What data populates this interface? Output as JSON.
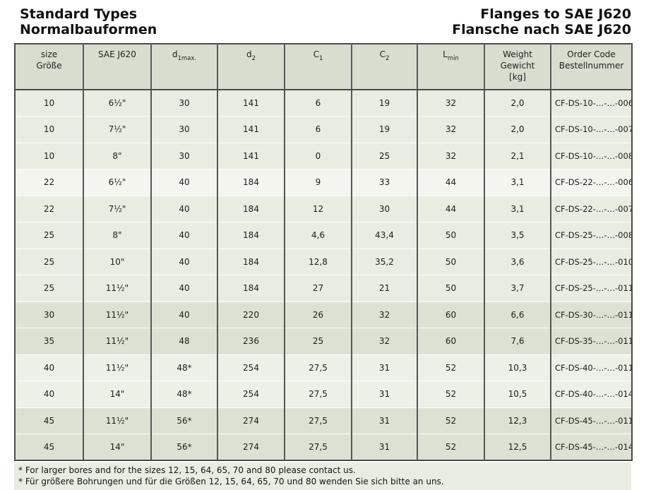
{
  "titles": {
    "left1": "Standard Types",
    "left2": "Normalbauformen",
    "right1": "Flanges to SAE J620",
    "right2": "Flansche nach SAE J620"
  },
  "table": {
    "columns": [
      {
        "id": "size",
        "lines": [
          "size",
          "Größe"
        ]
      },
      {
        "id": "sae",
        "lines": [
          "SAE J620"
        ]
      },
      {
        "id": "d1",
        "base": "d",
        "sub": "1max."
      },
      {
        "id": "d2",
        "base": "d",
        "sub": "2"
      },
      {
        "id": "c1",
        "base": "C",
        "sub": "1"
      },
      {
        "id": "c2",
        "base": "C",
        "sub": "2"
      },
      {
        "id": "l",
        "base": "L",
        "sub": "min"
      },
      {
        "id": "wt",
        "lines": [
          "Weight",
          "Gewicht",
          "[kg]"
        ]
      },
      {
        "id": "code",
        "lines": [
          "Order Code",
          "Bestellnummer"
        ]
      }
    ],
    "rows": [
      {
        "size": "10",
        "sae": "6½\"",
        "d1": "30",
        "d2": "141",
        "c1": "6",
        "c2": "19",
        "l": "32",
        "wt": "2,0",
        "code": "CF-DS-10-…-…-006",
        "band": "a"
      },
      {
        "size": "10",
        "sae": "7½\"",
        "d1": "30",
        "d2": "141",
        "c1": "6",
        "c2": "19",
        "l": "32",
        "wt": "2,0",
        "code": "CF-DS-10-…-…-007",
        "band": "a"
      },
      {
        "size": "10",
        "sae": "8\"",
        "d1": "30",
        "d2": "141",
        "c1": "0",
        "c2": "25",
        "l": "32",
        "wt": "2,1",
        "code": "CF-DS-10-…-…-008",
        "band": "a"
      },
      {
        "size": "22",
        "sae": "6½\"",
        "d1": "40",
        "d2": "184",
        "c1": "9",
        "c2": "33",
        "l": "44",
        "wt": "3,1",
        "code": "CF-DS-22-…-…-006",
        "band": "b"
      },
      {
        "size": "22",
        "sae": "7½\"",
        "d1": "40",
        "d2": "184",
        "c1": "12",
        "c2": "30",
        "l": "44",
        "wt": "3,1",
        "code": "CF-DS-22-…-…-007",
        "band": "a"
      },
      {
        "size": "25",
        "sae": "8\"",
        "d1": "40",
        "d2": "184",
        "c1": "4,6",
        "c2": "43,4",
        "l": "50",
        "wt": "3,5",
        "code": "CF-DS-25-…-…-008",
        "band": "a"
      },
      {
        "size": "25",
        "sae": "10\"",
        "d1": "40",
        "d2": "184",
        "c1": "12,8",
        "c2": "35,2",
        "l": "50",
        "wt": "3,6",
        "code": "CF-DS-25-…-…-010",
        "band": "a"
      },
      {
        "size": "25",
        "sae": "11½\"",
        "d1": "40",
        "d2": "184",
        "c1": "27",
        "c2": "21",
        "l": "50",
        "wt": "3,7",
        "code": "CF-DS-25-…-…-011",
        "band": "a"
      },
      {
        "size": "30",
        "sae": "11½\"",
        "d1": "40",
        "d2": "220",
        "c1": "26",
        "c2": "32",
        "l": "60",
        "wt": "6,6",
        "code": "CF-DS-30-…-…-011",
        "band": "c"
      },
      {
        "size": "35",
        "sae": "11½\"",
        "d1": "48",
        "d2": "236",
        "c1": "25",
        "c2": "32",
        "l": "60",
        "wt": "7,6",
        "code": "CF-DS-35-…-…-011",
        "band": "c"
      },
      {
        "size": "40",
        "sae": "11½\"",
        "d1": "48*",
        "d2": "254",
        "c1": "27,5",
        "c2": "31",
        "l": "52",
        "wt": "10,3",
        "code": "CF-DS-40-…-…-011",
        "band": "d"
      },
      {
        "size": "40",
        "sae": "14\"",
        "d1": "48*",
        "d2": "254",
        "c1": "27,5",
        "c2": "31",
        "l": "52",
        "wt": "10,5",
        "code": "CF-DS-40-…-…-014",
        "band": "d"
      },
      {
        "size": "45",
        "sae": "11½\"",
        "d1": "56*",
        "d2": "274",
        "c1": "27,5",
        "c2": "31",
        "l": "52",
        "wt": "12,3",
        "code": "CF-DS-45-…-…-011",
        "band": "c"
      },
      {
        "size": "45",
        "sae": "14\"",
        "d1": "56*",
        "d2": "274",
        "c1": "27,5",
        "c2": "31",
        "l": "52",
        "wt": "12,5",
        "code": "CF-DS-45-…-…-014",
        "band": "c"
      }
    ]
  },
  "footnotes": [
    "* For larger bores and for the sizes 12, 15, 64, 65, 70 and 80 please contact us.",
    "* Für größere Bohrungen und für die Größen 12, 15, 64, 65, 70 und 80 wenden Sie sich bitte an uns."
  ],
  "colors": {
    "header_bg": "#d8ddd0",
    "row_light": "#e9ece1",
    "row_lighter": "#f3f5ee",
    "row_dark": "#dce1d3",
    "border": "#4a4a4a"
  }
}
